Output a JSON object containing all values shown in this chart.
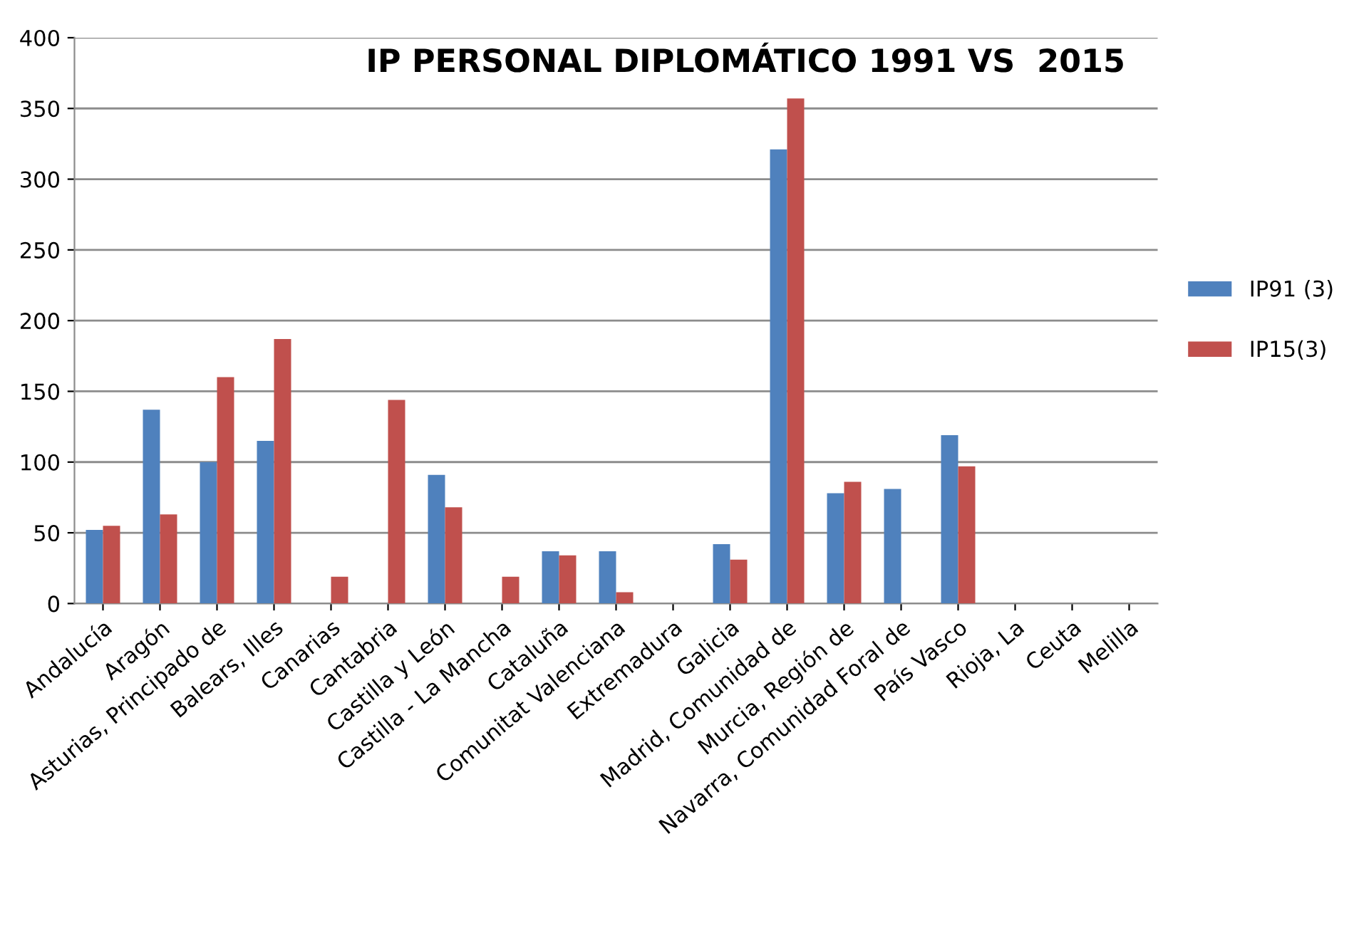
{
  "chart_data": {
    "type": "bar",
    "title": "IP PERSONAL DIPLOMÁTICO 1991 VS  2015",
    "categories": [
      "Andalucía",
      "Aragón",
      "Asturias, Principado de",
      "Balears, Illes",
      "Canarias",
      "Cantabria",
      "Castilla y León",
      "Castilla - La Mancha",
      "Cataluña",
      "Comunitat Valenciana",
      "Extremadura",
      "Galicia",
      "Madrid, Comunidad de",
      "Murcia, Región de",
      "Navarra, Comunidad Foral de",
      "País Vasco",
      "Rioja, La",
      "Ceuta",
      "Melilla"
    ],
    "series": [
      {
        "name": "IP91 (3)",
        "color": "#4f81bd",
        "values": [
          52,
          137,
          100,
          115,
          null,
          null,
          91,
          null,
          37,
          37,
          null,
          42,
          321,
          78,
          81,
          119,
          null,
          null,
          null
        ]
      },
      {
        "name": "IP15(3)",
        "color": "#c0504d",
        "values": [
          55,
          63,
          160,
          187,
          19,
          144,
          68,
          19,
          34,
          8,
          null,
          31,
          357,
          86,
          null,
          97,
          null,
          null,
          null
        ]
      }
    ],
    "ylim": [
      0,
      400
    ],
    "yticks": [
      0,
      50,
      100,
      150,
      200,
      250,
      300,
      350,
      400
    ],
    "grid": "y",
    "legend": "right"
  }
}
